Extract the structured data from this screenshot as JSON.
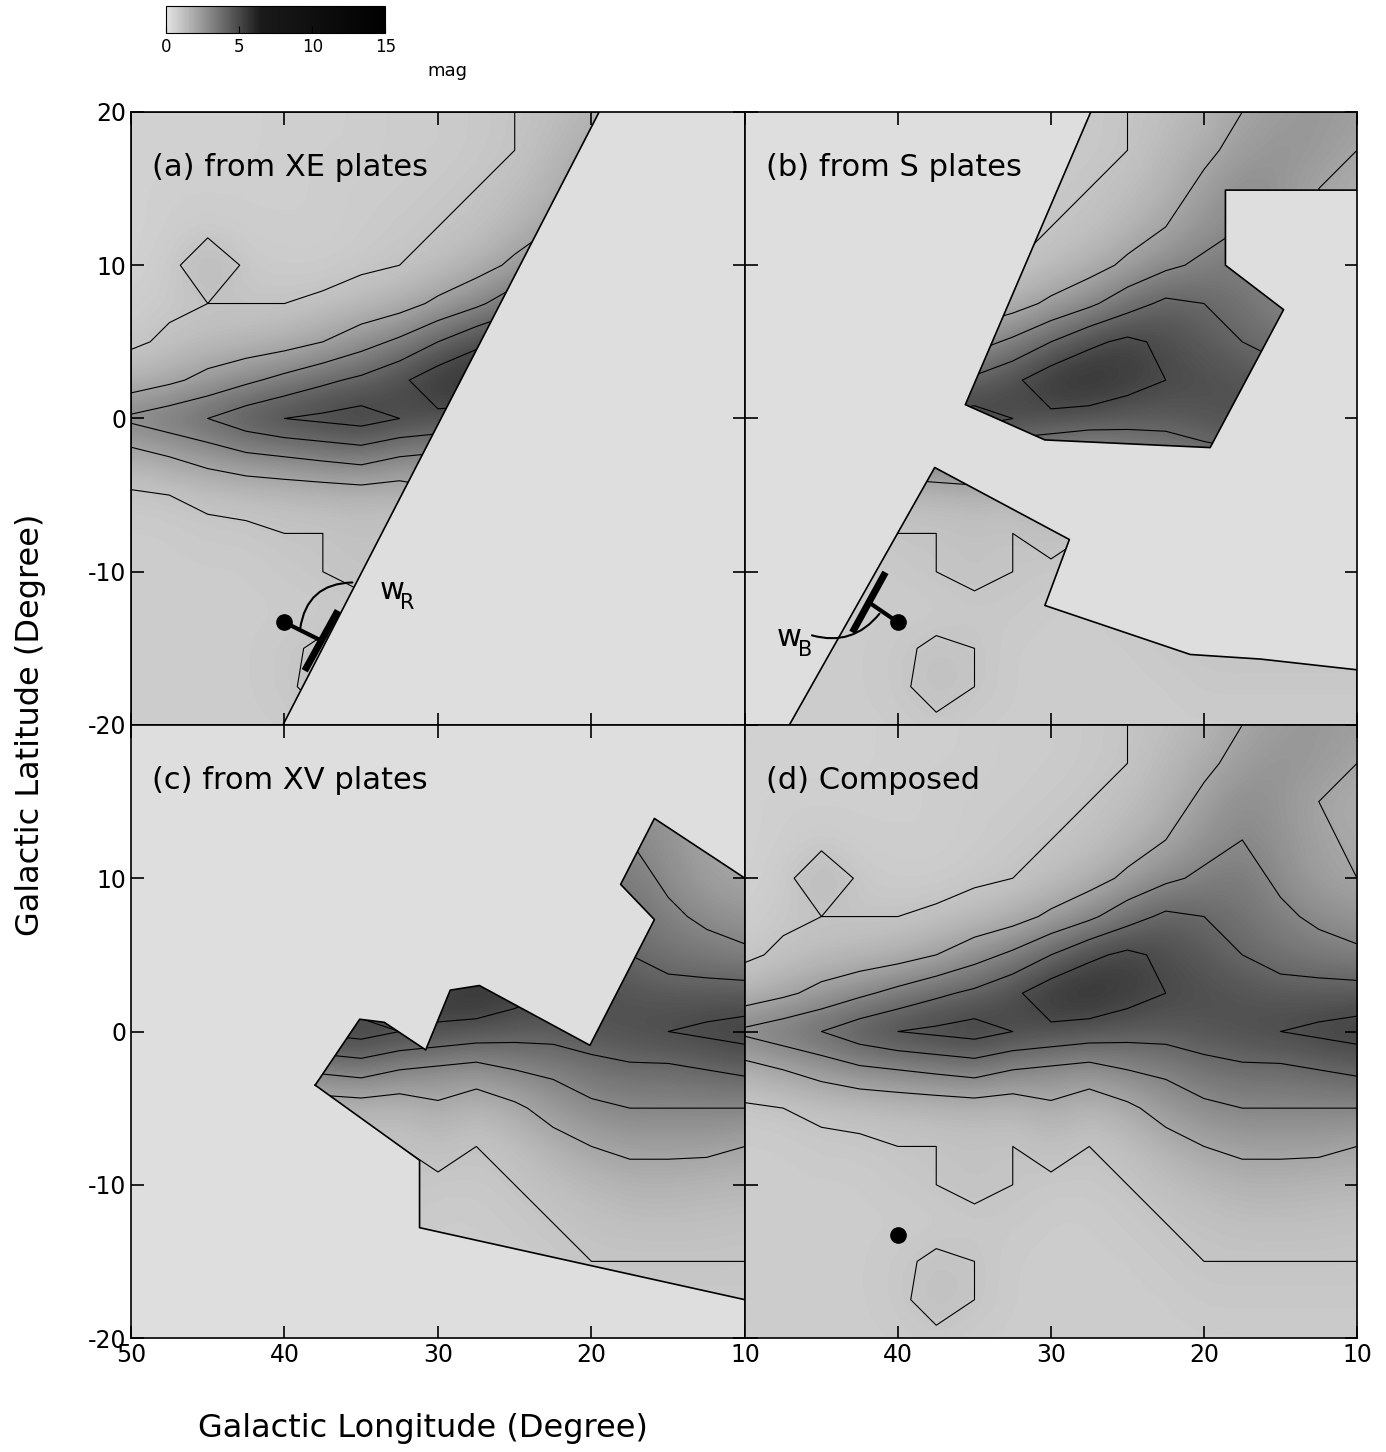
{
  "chart_data": {
    "type": "heatmap",
    "x_label": "Galactic Longitude (Degree)",
    "y_label": "Galactic Latitude (Degree)",
    "colorbar": {
      "range": [
        0,
        15
      ],
      "ticks": [
        0,
        5,
        10,
        15
      ],
      "label": "mag"
    },
    "contour_levels": [
      1,
      2,
      3,
      4,
      5
    ],
    "l": [
      50,
      47.5,
      45,
      42.5,
      40,
      37.5,
      35,
      32.5,
      30,
      27.5,
      25,
      22.5,
      20,
      17.5,
      15,
      12.5,
      10
    ],
    "b": [
      -20,
      -17.5,
      -15,
      -12.5,
      -10,
      -7.5,
      -5,
      -2.5,
      0,
      2.5,
      5,
      7.5,
      10,
      12.5,
      15,
      17.5,
      20
    ],
    "cells": [
      [
        0.8,
        0.8,
        0.8,
        0.8,
        0.8,
        0.9,
        0.8,
        0.8,
        0.8,
        0.8,
        0.8,
        0.8,
        0.8,
        0.8,
        0.8,
        0.8,
        0.8
      ],
      [
        0.8,
        0.8,
        0.8,
        0.8,
        0.9,
        1.2,
        1.0,
        0.8,
        0.8,
        0.8,
        0.8,
        0.8,
        0.9,
        0.9,
        0.9,
        0.9,
        0.9
      ],
      [
        0.8,
        0.8,
        0.8,
        0.8,
        0.9,
        1.1,
        1.0,
        0.8,
        0.8,
        0.8,
        0.8,
        0.9,
        1.0,
        1.0,
        1.0,
        1.0,
        1.0
      ],
      [
        0.8,
        0.8,
        0.8,
        0.8,
        0.8,
        0.8,
        0.9,
        0.9,
        0.8,
        0.8,
        0.9,
        1.0,
        1.1,
        1.2,
        1.2,
        1.2,
        1.1
      ],
      [
        0.8,
        0.8,
        0.8,
        0.8,
        0.9,
        1.0,
        1.1,
        1.0,
        0.9,
        0.9,
        1.0,
        1.2,
        1.4,
        1.6,
        1.6,
        1.5,
        1.5
      ],
      [
        0.8,
        0.8,
        0.9,
        0.9,
        1.0,
        1.0,
        1.1,
        1.0,
        1.2,
        1.0,
        1.2,
        1.6,
        2.0,
        2.2,
        2.2,
        2.2,
        2.0
      ],
      [
        0.9,
        1.0,
        1.1,
        1.2,
        1.3,
        1.4,
        1.5,
        1.4,
        1.8,
        1.4,
        1.8,
        2.4,
        2.8,
        3.0,
        3.0,
        3.0,
        3.0
      ],
      [
        1.6,
        2.0,
        2.4,
        2.8,
        3.0,
        3.2,
        3.4,
        3.0,
        2.8,
        2.6,
        3.0,
        3.2,
        3.6,
        3.8,
        3.8,
        4.0,
        4.2
      ],
      [
        3.2,
        3.6,
        4.0,
        4.6,
        5.0,
        5.2,
        5.4,
        5.0,
        4.8,
        4.6,
        4.4,
        4.4,
        4.6,
        4.8,
        5.0,
        5.2,
        5.4
      ],
      [
        1.4,
        1.8,
        2.3,
        2.8,
        3.3,
        3.8,
        4.2,
        4.8,
        5.6,
        5.8,
        5.4,
        5.0,
        4.8,
        4.6,
        4.4,
        4.4,
        4.4
      ],
      [
        0.9,
        1.1,
        1.3,
        1.4,
        1.6,
        2.0,
        2.6,
        3.2,
        4.0,
        4.8,
        5.2,
        4.8,
        4.4,
        4.0,
        3.6,
        3.4,
        3.2
      ],
      [
        0.7,
        0.9,
        1.0,
        1.0,
        1.0,
        1.1,
        1.3,
        1.6,
        2.2,
        2.8,
        3.6,
        4.2,
        4.0,
        3.6,
        3.2,
        2.8,
        2.5
      ],
      [
        0.6,
        0.8,
        1.5,
        0.9,
        0.8,
        0.8,
        0.9,
        1.0,
        1.2,
        1.6,
        2.2,
        2.8,
        3.2,
        3.4,
        2.8,
        2.2,
        2.0
      ],
      [
        0.6,
        0.7,
        0.8,
        0.7,
        0.7,
        0.7,
        0.8,
        0.9,
        1.0,
        1.1,
        1.5,
        2.0,
        2.6,
        3.0,
        2.6,
        2.1,
        1.9
      ],
      [
        0.6,
        0.7,
        0.7,
        0.7,
        0.7,
        0.7,
        0.8,
        0.8,
        0.9,
        1.0,
        1.2,
        1.6,
        2.2,
        2.8,
        2.5,
        2.0,
        1.8
      ],
      [
        0.6,
        0.6,
        0.6,
        0.6,
        0.7,
        0.7,
        0.7,
        0.8,
        0.8,
        0.9,
        1.0,
        1.4,
        1.8,
        2.3,
        2.6,
        2.4,
        2.0
      ],
      [
        0.6,
        0.6,
        0.6,
        0.6,
        0.7,
        0.7,
        0.7,
        0.8,
        0.8,
        0.9,
        1.0,
        1.2,
        1.5,
        2.0,
        2.3,
        2.5,
        2.2
      ]
    ],
    "marker_point": [
      40,
      -13.3
    ],
    "panels": [
      {
        "title": "(a) from XE plates",
        "coverage": [
          [
            [
              50,
              20
            ],
            [
              19.5,
              20
            ],
            [
              40.1,
              -20
            ],
            [
              50,
              -20
            ]
          ]
        ],
        "marker": "circle",
        "annotation": {
          "text": "w",
          "subscript": "R"
        },
        "xlim": [
          50,
          10
        ],
        "ylim": [
          -20,
          20
        ],
        "xticks": [
          50,
          40,
          30,
          20,
          10
        ],
        "yticks": [
          20,
          10,
          0,
          -10,
          -20
        ],
        "tick_labels": "y"
      },
      {
        "title": "(b) from S plates",
        "coverage": [
          [
            [
              27.4,
              20
            ],
            [
              10,
              20
            ],
            [
              10,
              14.9
            ],
            [
              18.6,
              14.9
            ],
            [
              18.6,
              10.0
            ],
            [
              14.8,
              7.1
            ],
            [
              19.6,
              -1.9
            ],
            [
              30.4,
              -1.4
            ],
            [
              35.6,
              0.9
            ]
          ],
          [
            [
              47.1,
              -20
            ],
            [
              37.6,
              -3.2
            ],
            [
              28.8,
              -7.9
            ],
            [
              30.4,
              -12.2
            ],
            [
              20.9,
              -15.4
            ],
            [
              16.3,
              -15.7
            ],
            [
              10,
              -16.4
            ],
            [
              10,
              -20
            ]
          ]
        ],
        "marker": "circle",
        "annotation": {
          "text": "w",
          "subscript": "B"
        },
        "xlim": [
          50,
          10
        ],
        "ylim": [
          -20,
          20
        ],
        "xticks": [
          50,
          40,
          30,
          20,
          10
        ],
        "yticks": [
          20,
          10,
          0,
          -10,
          -20
        ],
        "tick_labels": false
      },
      {
        "title": "(c) from XV plates",
        "coverage": [
          [
            [
              38.0,
              -3.5
            ],
            [
              35.1,
              0.8
            ],
            [
              33.5,
              0.6
            ],
            [
              30.8,
              -1.2
            ],
            [
              29.2,
              2.7
            ],
            [
              27.3,
              3.0
            ],
            [
              20.1,
              -0.9
            ],
            [
              15.9,
              7.3
            ],
            [
              18.1,
              9.6
            ],
            [
              15.9,
              13.9
            ],
            [
              10,
              10.0
            ],
            [
              10,
              -17.5
            ],
            [
              31.2,
              -12.8
            ],
            [
              31.2,
              -8.4
            ]
          ]
        ],
        "xlim": [
          50,
          10
        ],
        "ylim": [
          -20,
          20
        ],
        "xticks": [
          50,
          40,
          30,
          20,
          10
        ],
        "yticks": [
          10,
          0,
          -10,
          -20
        ],
        "tick_labels": true
      },
      {
        "title": "(d) Composed",
        "marker": "circle",
        "xlim": [
          50,
          10
        ],
        "ylim": [
          -20,
          20
        ],
        "xticks": [
          40,
          30,
          20,
          10
        ],
        "yticks": [
          20,
          10,
          0,
          -10,
          -20
        ],
        "tick_labels": "x"
      }
    ]
  }
}
